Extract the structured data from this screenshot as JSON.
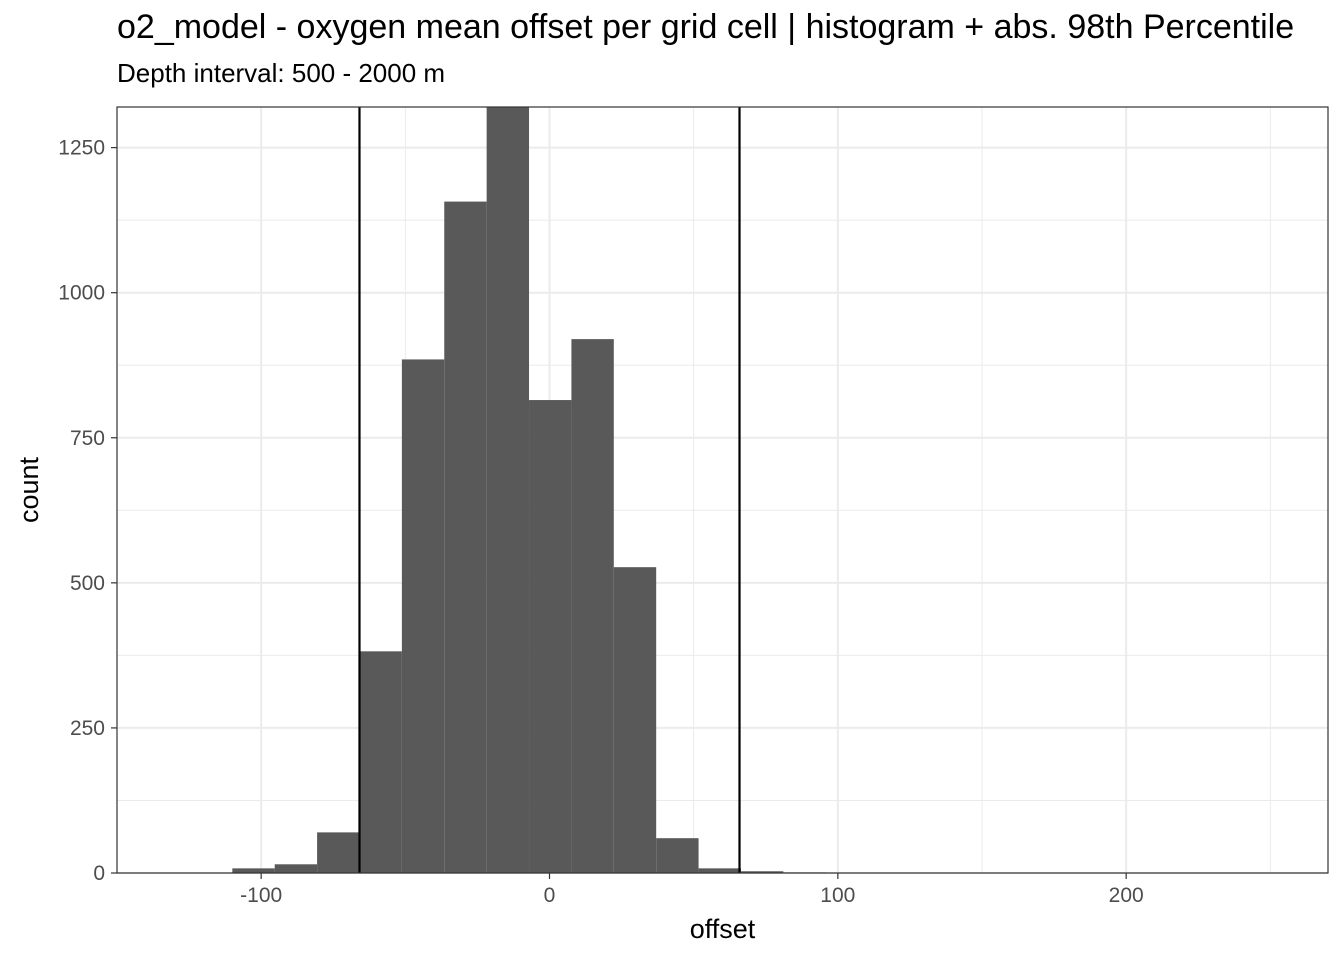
{
  "chart_data": {
    "type": "bar",
    "title": "o2_model  -  oxygen mean offset per grid cell | histogram + abs. 98th Percentile",
    "subtitle": "Depth interval: 500 - 2000 m",
    "xlabel": "offset",
    "ylabel": "count",
    "xlim": [
      -150,
      270
    ],
    "ylim": [
      0,
      1320
    ],
    "x_ticks": [
      -100,
      0,
      100,
      200
    ],
    "x_tick_labels": [
      "-100",
      "0",
      "100",
      "200"
    ],
    "y_ticks": [
      0,
      250,
      500,
      750,
      1000,
      1250
    ],
    "y_tick_labels": [
      "0",
      "250",
      "500",
      "750",
      "1000",
      "1250"
    ],
    "grid": true,
    "bin_width": 14.7,
    "bins": [
      {
        "x0": -110.0,
        "x1": -95.3,
        "count": 8
      },
      {
        "x0": -95.3,
        "x1": -80.6,
        "count": 15
      },
      {
        "x0": -80.6,
        "x1": -65.9,
        "count": 70
      },
      {
        "x0": -65.9,
        "x1": -51.2,
        "count": 382
      },
      {
        "x0": -51.2,
        "x1": -36.5,
        "count": 885
      },
      {
        "x0": -36.5,
        "x1": -21.8,
        "count": 1157
      },
      {
        "x0": -21.8,
        "x1": -7.1,
        "count": 1325
      },
      {
        "x0": -7.1,
        "x1": 7.6,
        "count": 815
      },
      {
        "x0": 7.6,
        "x1": 22.3,
        "count": 920
      },
      {
        "x0": 22.3,
        "x1": 37.0,
        "count": 527
      },
      {
        "x0": 37.0,
        "x1": 51.7,
        "count": 60
      },
      {
        "x0": 51.7,
        "x1": 66.4,
        "count": 8
      },
      {
        "x0": 66.4,
        "x1": 81.1,
        "count": 3
      },
      {
        "x0": 81.1,
        "x1": 95.8,
        "count": 1
      }
    ],
    "percentile_lines": [
      -65.9,
      65.9
    ],
    "bar_color": "#595959",
    "line_color": "#000000",
    "grid_color": "#ebebeb"
  }
}
